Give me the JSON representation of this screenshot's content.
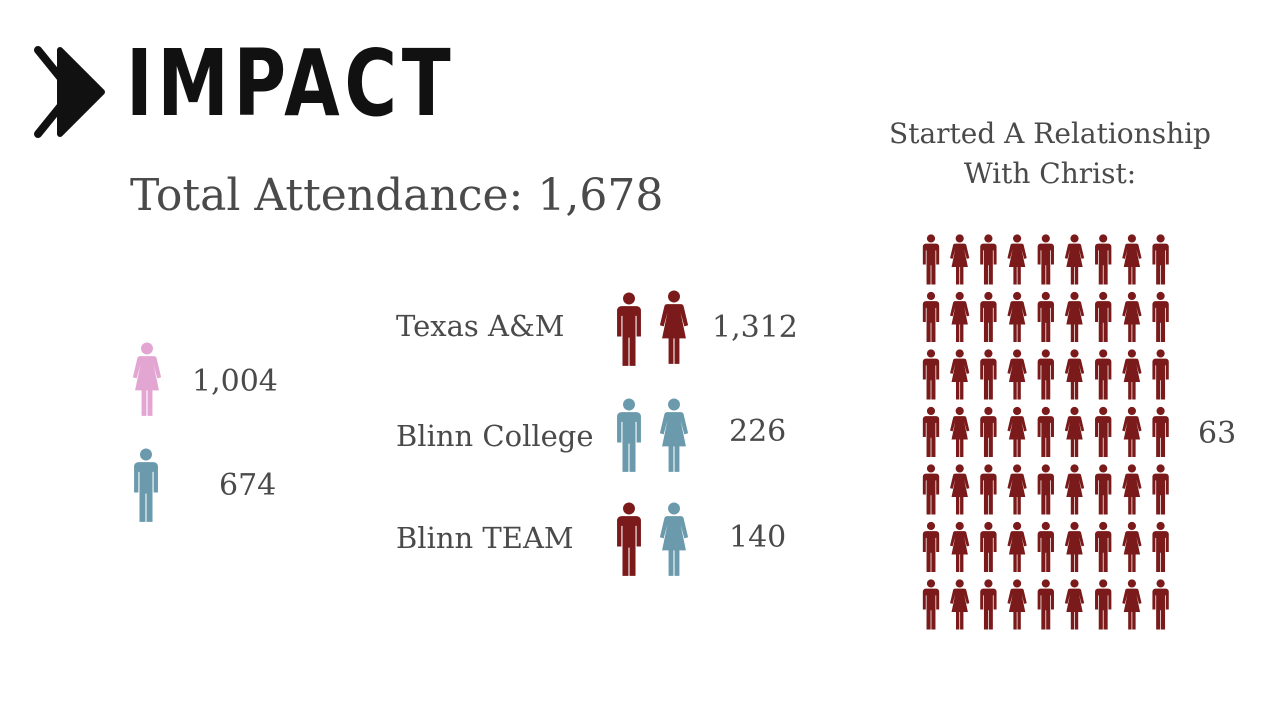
{
  "brand": {
    "name": "IMPACT",
    "logo_icon": "double-play-chevron-icon"
  },
  "total_attendance": "Total Attendance: 1,678",
  "gender": {
    "female": {
      "count": "1,004",
      "color": "#e3a6d3",
      "icon": "female-figure-icon"
    },
    "male": {
      "count": "674",
      "color": "#6b9aad",
      "icon": "male-figure-icon"
    }
  },
  "schools": [
    {
      "name": "Texas A&M",
      "count": "1,312",
      "male_color": "#7a1a1a",
      "female_color": "#7a1a1a"
    },
    {
      "name": "Blinn College",
      "count": "226",
      "male_color": "#6b9aad",
      "female_color": "#6b9aad"
    },
    {
      "name": "Blinn TEAM",
      "count": "140",
      "male_color": "#7a1a1a",
      "female_color": "#6b9aad"
    }
  ],
  "christ": {
    "heading_line1": "Started A Relationship",
    "heading_line2": "With Christ:",
    "count": "63",
    "figure_total": 63,
    "columns": 9,
    "color": "#7a1a1a"
  }
}
